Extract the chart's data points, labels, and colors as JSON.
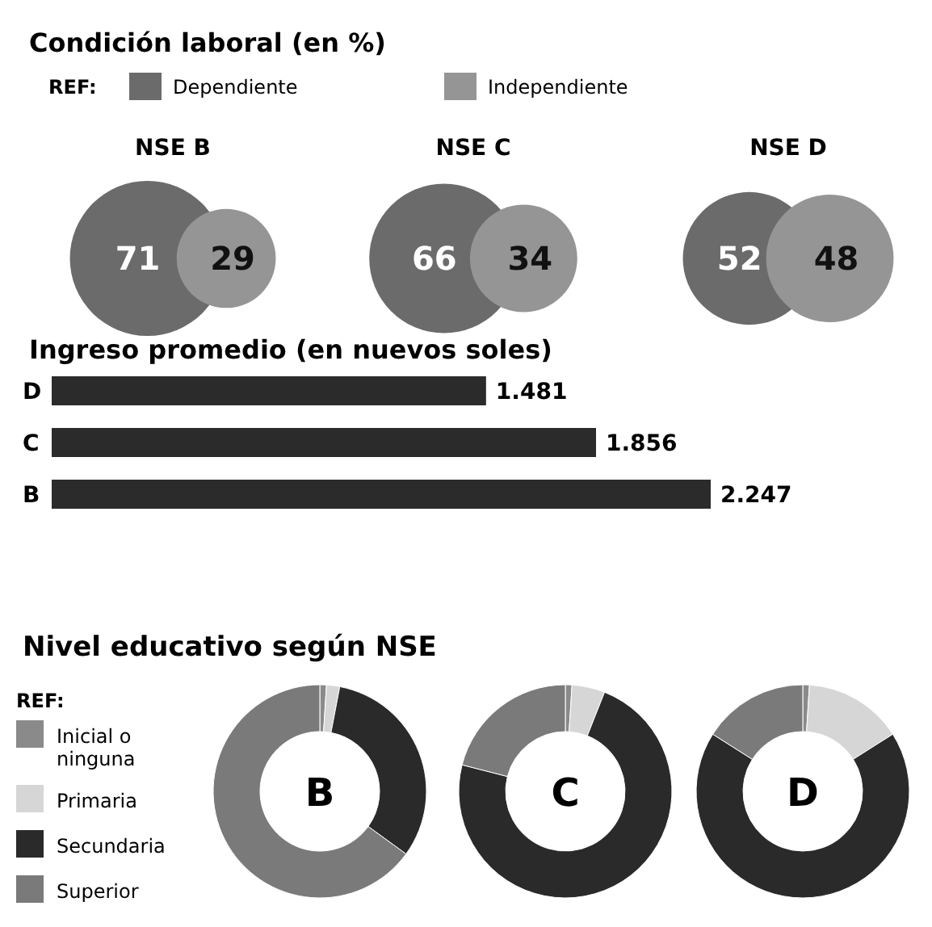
{
  "chart_data": [
    {
      "type": "other",
      "title": "Condición laboral (en %)",
      "legend_title": "REF:",
      "legend": "top left",
      "categories": [
        "NSE B",
        "NSE C",
        "NSE D"
      ],
      "data_labels": true,
      "series": [
        {
          "name": "Dependiente",
          "color": "#6b6b6b",
          "values": [
            71,
            66,
            52
          ]
        },
        {
          "name": "Independiente",
          "color": "#959595",
          "values": [
            29,
            34,
            48
          ]
        }
      ]
    },
    {
      "type": "bar",
      "orientation": "horizontal",
      "title": "Ingreso promedio (en nuevos soles)",
      "categories": [
        "D",
        "C",
        "B"
      ],
      "values": [
        1481,
        1856,
        2247
      ],
      "value_labels": [
        "1.481",
        "1.856",
        "2.247"
      ],
      "color": "#2b2b2b",
      "tick_labels": "y"
    },
    {
      "type": "donut",
      "title": "Nivel educativo según NSE",
      "legend_title": "REF:",
      "legend": "left",
      "categories": [
        "Inicial o ninguna",
        "Primaria",
        "Secundaria",
        "Superior"
      ],
      "colors": [
        "#8a8a8a",
        "#d6d6d6",
        "#2a2a2a",
        "#7a7a7a"
      ],
      "series": [
        {
          "name": "B",
          "values": [
            1,
            2,
            32,
            65
          ]
        },
        {
          "name": "C",
          "values": [
            1,
            5,
            73,
            21
          ]
        },
        {
          "name": "D",
          "values": [
            1,
            15,
            68,
            16
          ]
        }
      ]
    }
  ]
}
